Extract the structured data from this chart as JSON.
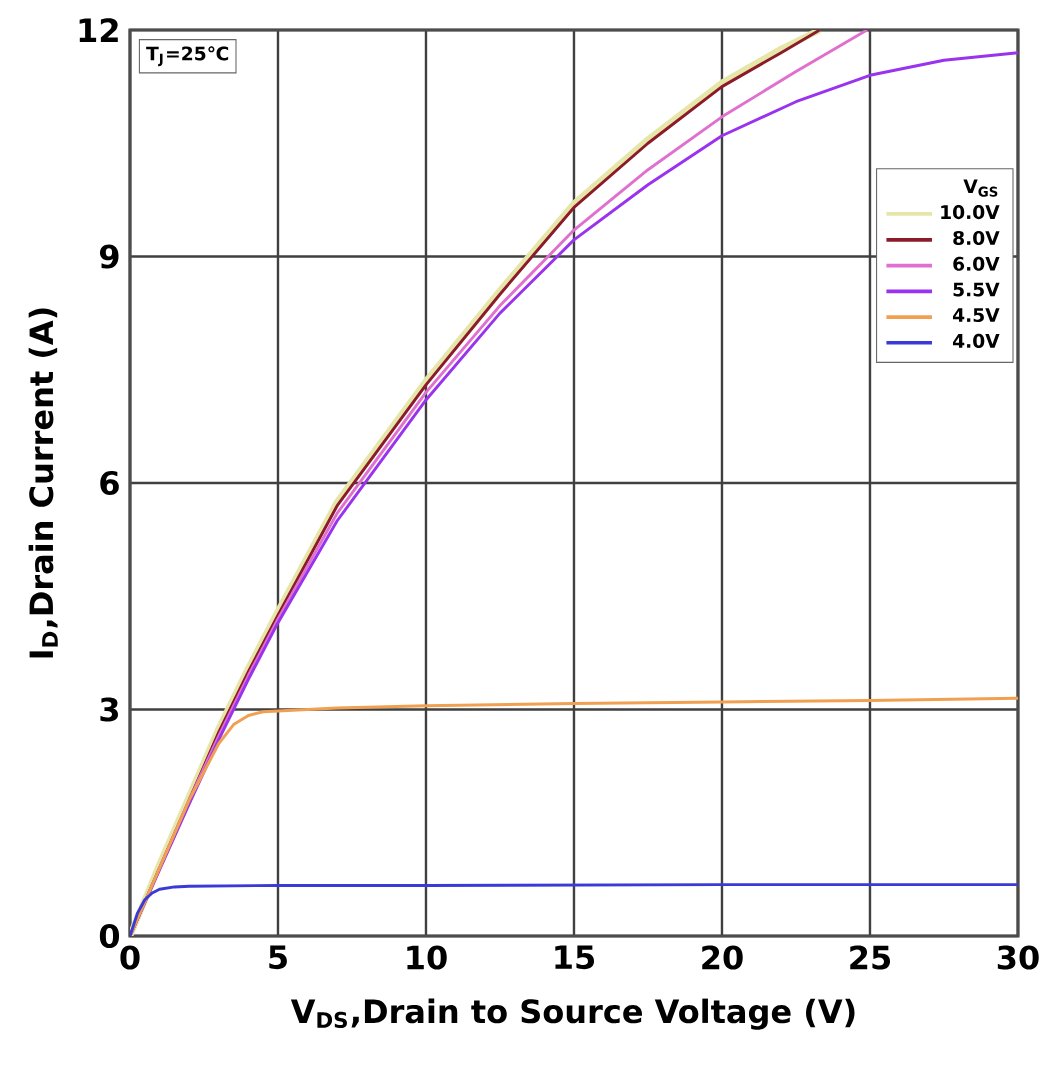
{
  "chart_data": {
    "type": "line",
    "xlabel": "V$_{DS}$,Drain to Source Voltage (V)",
    "ylabel": "I$_{D}$,Drain Current (A)",
    "legend_title": "V$_{GS}$",
    "annotations": [
      "T$_{J}$=25℃"
    ],
    "xlim": [
      0,
      30
    ],
    "ylim": [
      0,
      12
    ],
    "xticks": [
      0,
      5,
      10,
      15,
      20,
      25,
      30
    ],
    "yticks": [
      0,
      3,
      6,
      9,
      12
    ],
    "grid": true,
    "legend": "right",
    "line_style": "solid",
    "series": [
      {
        "name": "10.0V",
        "color": "#e6e6a8",
        "x": [
          0,
          1,
          2,
          3,
          4,
          5,
          7,
          10,
          12.5,
          15,
          17.5,
          20,
          22,
          23.3
        ],
        "values": [
          0,
          0.95,
          1.85,
          2.75,
          3.55,
          4.3,
          5.75,
          7.35,
          8.55,
          9.7,
          10.55,
          11.3,
          11.75,
          12
        ]
      },
      {
        "name": "8.0V",
        "color": "#8b1a2a",
        "x": [
          0,
          1,
          2,
          3,
          4,
          5,
          7,
          10,
          12.5,
          15,
          17.5,
          20,
          22,
          23.3
        ],
        "values": [
          0,
          0.9,
          1.8,
          2.7,
          3.5,
          4.25,
          5.7,
          7.3,
          8.5,
          9.65,
          10.5,
          11.25,
          11.7,
          12
        ]
      },
      {
        "name": "6.0V",
        "color": "#e070d0",
        "x": [
          0,
          1,
          2,
          3,
          4,
          5,
          7,
          10,
          12.5,
          15,
          17.5,
          20,
          22.5,
          24.9
        ],
        "values": [
          0,
          0.9,
          1.8,
          2.65,
          3.45,
          4.2,
          5.6,
          7.2,
          8.35,
          9.35,
          10.15,
          10.85,
          11.45,
          12
        ]
      },
      {
        "name": "5.5V",
        "color": "#9933ee",
        "x": [
          0,
          1,
          2,
          3,
          4,
          5,
          7,
          10,
          12.5,
          15,
          17.5,
          20,
          22.5,
          25,
          27.5,
          30
        ],
        "values": [
          0,
          0.88,
          1.75,
          2.6,
          3.4,
          4.15,
          5.5,
          7.1,
          8.25,
          9.22,
          9.95,
          10.6,
          11.05,
          11.4,
          11.6,
          11.7
        ]
      },
      {
        "name": "4.5V",
        "color": "#f0a050",
        "x": [
          0,
          1,
          2,
          3,
          3.5,
          4,
          4.5,
          5,
          7,
          10,
          15,
          20,
          25,
          30
        ],
        "values": [
          0,
          0.9,
          1.8,
          2.55,
          2.8,
          2.92,
          2.97,
          2.98,
          3.02,
          3.05,
          3.08,
          3.1,
          3.12,
          3.15
        ]
      },
      {
        "name": "4.0V",
        "color": "#3a3ad8",
        "x": [
          0,
          0.25,
          0.5,
          0.75,
          1,
          1.5,
          2,
          5,
          10,
          20,
          30
        ],
        "values": [
          0,
          0.3,
          0.48,
          0.57,
          0.62,
          0.65,
          0.66,
          0.67,
          0.67,
          0.68,
          0.68
        ]
      }
    ]
  }
}
